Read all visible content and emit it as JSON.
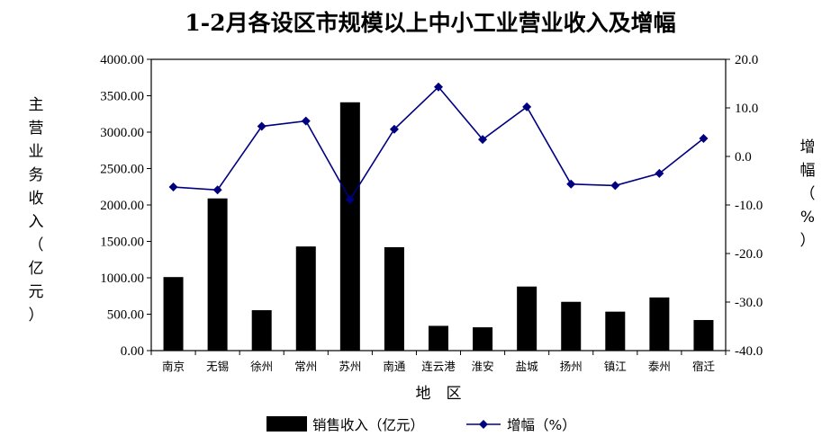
{
  "chart_data": {
    "type": "bar+line",
    "title": "1-2月各设区市规模以上中小工业营业收入及增幅",
    "xlabel": "地　区",
    "ylabel_left_chars": [
      "主",
      "营",
      "业",
      "务",
      "收",
      "入",
      "（",
      "亿",
      "元",
      "）"
    ],
    "ylabel_right_chars": [
      "增",
      "幅",
      "（",
      "%",
      "）"
    ],
    "categories": [
      "南京",
      "无锡",
      "徐州",
      "常州",
      "苏州",
      "南通",
      "连云港",
      "淮安",
      "盐城",
      "扬州",
      "镇江",
      "泰州",
      "宿迁"
    ],
    "series": [
      {
        "name": "销售收入（亿元）",
        "kind": "bar",
        "axis": "left",
        "values": [
          1010,
          2090,
          555,
          1430,
          3410,
          1420,
          340,
          320,
          880,
          670,
          535,
          730,
          420
        ]
      },
      {
        "name": "增幅（%）",
        "kind": "line",
        "axis": "right",
        "values": [
          -6.3,
          -6.9,
          6.2,
          7.3,
          -8.9,
          5.6,
          14.3,
          3.5,
          10.2,
          -5.7,
          -6.0,
          -3.5,
          3.7
        ]
      }
    ],
    "ylim_left": [
      0,
      4000
    ],
    "yticks_left": [
      "4000.00",
      "3500.00",
      "3000.00",
      "2500.00",
      "2000.00",
      "1500.00",
      "1000.00",
      "500.00",
      "0.00"
    ],
    "ylim_right": [
      -40,
      20
    ],
    "yticks_right": [
      "20.0",
      "10.0",
      "0.0",
      "-10.0",
      "-20.0",
      "-30.0",
      "-40.0"
    ],
    "colors": {
      "bar": "#000000",
      "line": "#000080"
    },
    "legend": {
      "position": "bottom",
      "items": [
        "销售收入（亿元）",
        "增幅（%）"
      ]
    },
    "grid": false
  }
}
